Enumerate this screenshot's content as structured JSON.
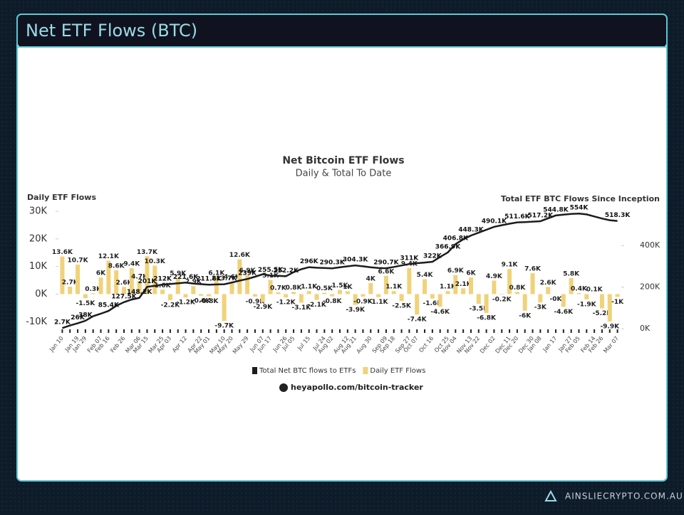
{
  "header": {
    "title": "Net ETF Flows (BTC)"
  },
  "chart_data": {
    "type": "combo",
    "title": "Net Bitcoin ETF Flows",
    "subtitle": "Daily & Total To Date",
    "y_label": "Daily ETF Flows",
    "y2_label": "Total ETF BTC Flows Since Inception",
    "source": "heyapollo.com/bitcoin-tracker",
    "categories": [
      "Jan 10",
      null,
      "Jan 19",
      "Jan 29",
      null,
      "Feb 07",
      "Feb 16",
      null,
      "Feb 26",
      null,
      "Mar 06",
      "Mar 15",
      null,
      "Mar 25",
      "Apr 03",
      null,
      "Apr 12",
      null,
      "Apr 22",
      "May 01",
      null,
      "May 10",
      "May 20",
      null,
      "May 29",
      null,
      "Jun 07",
      "Jun 17",
      null,
      "Jun 26",
      "Jul 05",
      null,
      "Jul 15",
      null,
      "Jul 24",
      "Aug 02",
      null,
      "Aug 12",
      "Aug 21",
      null,
      "Aug 30",
      null,
      "Sep 09",
      "Sep 18",
      null,
      "Sep 27",
      "Oct 07",
      null,
      "Oct 16",
      null,
      "Oct 25",
      "Nov 04",
      null,
      "Nov 13",
      "Nov 22",
      null,
      "Dec 02",
      null,
      "Dec 11",
      "Dec 20",
      null,
      "Dec 30",
      "Jan 08",
      null,
      "Jan 17",
      null,
      "Jan 27",
      "Feb 05",
      null,
      "Feb 14",
      "Feb 26",
      null,
      "Mar 07"
    ],
    "series": [
      {
        "name": "Total Net BTC flows to ETFs",
        "type": "line",
        "axis": "y2",
        "color": "#1c1c1c",
        "values": [
          2700,
          15000,
          26000,
          38000,
          60000,
          72000,
          85400,
          110000,
          127500,
          140000,
          148200,
          201000,
          206000,
          212000,
          215000,
          218000,
          221600,
          217000,
          214000,
          211600,
          212500,
          213700,
          222000,
          231000,
          239000,
          250000,
          262000,
          255500,
          254000,
          252200,
          272000,
          286000,
          296000,
          293000,
          292000,
          290300,
          295000,
          300000,
          304300,
          300000,
          295000,
          292000,
          290700,
          297000,
          304000,
          311000,
          315000,
          318000,
          322000,
          345000,
          366900,
          406800,
          430000,
          448300,
          462000,
          476000,
          490100,
          498000,
          505000,
          511600,
          513000,
          515000,
          517200,
          531000,
          544800,
          549000,
          552000,
          554000,
          550000,
          540000,
          530000,
          522000,
          518300
        ],
        "value_labels": [
          "2.7K",
          null,
          "26K",
          "38K",
          null,
          null,
          "85.4K",
          null,
          "127.5K",
          null,
          "148.2K",
          "201K",
          null,
          "212K",
          null,
          null,
          "221.6K",
          null,
          null,
          "211.6K",
          null,
          "213.7K",
          null,
          null,
          "239K",
          null,
          null,
          "255.5K",
          null,
          "252.2K",
          null,
          null,
          "296K",
          null,
          null,
          "290.3K",
          null,
          null,
          "304.3K",
          null,
          null,
          null,
          "290.7K",
          null,
          null,
          "311K",
          null,
          null,
          "322K",
          null,
          "366.9K",
          "406.8K",
          null,
          "448.3K",
          null,
          null,
          "490.1K",
          null,
          null,
          "511.6K",
          null,
          null,
          "517.2K",
          null,
          "544.8K",
          null,
          null,
          "554K",
          null,
          null,
          null,
          null,
          "518.3K"
        ]
      },
      {
        "name": "Daily ETF Flows",
        "type": "bar",
        "color": "#f0d27a",
        "values": [
          13600,
          2700,
          10700,
          -1500,
          300,
          6000,
          12100,
          8600,
          2600,
          9400,
          4700,
          13700,
          10300,
          1600,
          -2200,
          5900,
          -1200,
          2900,
          -600,
          -800,
          6100,
          -9700,
          4600,
          12600,
          6900,
          -900,
          -2900,
          5100,
          700,
          -1200,
          800,
          -3100,
          1100,
          -2100,
          500,
          -800,
          1500,
          1000,
          -3900,
          -900,
          4000,
          -1100,
          6600,
          1100,
          -2500,
          9400,
          -7400,
          5400,
          -1600,
          -4600,
          1100,
          6900,
          2100,
          6000,
          -3500,
          -6800,
          4900,
          -200,
          9100,
          800,
          -6000,
          7600,
          -3000,
          2600,
          -40,
          -4600,
          5800,
          400,
          -1900,
          100,
          -5200,
          -9900,
          -1000
        ],
        "value_labels": [
          "13.6K",
          "2.7K",
          "10.7K",
          "-1.5K",
          "0.3K",
          "6K",
          "12.1K",
          "8.6K",
          "2.6K",
          "9.4K",
          "4.7K",
          "13.7K",
          "10.3K",
          "1.6K",
          "-2.2K",
          "5.9K",
          "-1.2K",
          "2.9K",
          "-0.6K",
          "-0.8K",
          "6.1K",
          "-9.7K",
          "4.6K",
          "12.6K",
          "6.9K",
          "-0.9K",
          "-2.9K",
          "5.1K",
          "0.7K",
          "-1.2K",
          "0.8K",
          "-3.1K",
          "1.1K",
          "-2.1K",
          "0.5K",
          "-0.8K",
          "1.5K",
          "1K",
          "-3.9K",
          "-0.9K",
          "4K",
          "-1.1K",
          "6.6K",
          "1.1K",
          "-2.5K",
          "9.4K",
          "-7.4K",
          "5.4K",
          "-1.6K",
          "-4.6K",
          "1.1K",
          "6.9K",
          "2.1K",
          "6K",
          "-3.5K",
          "-6.8K",
          "4.9K",
          "-0.2K",
          "9.1K",
          "0.8K",
          "-6K",
          "7.6K",
          "-3K",
          "2.6K",
          "-0K",
          "-4.6K",
          "5.8K",
          "0.4K",
          "-1.9K",
          "0.1K",
          "-5.2K",
          "-9.9K",
          "-1K"
        ]
      }
    ],
    "ylim": [
      -12500,
      30000
    ],
    "yticks": [
      {
        "value": -10000,
        "label": "-10K"
      },
      {
        "value": 0,
        "label": "0K"
      },
      {
        "value": 10000,
        "label": "10K"
      },
      {
        "value": 20000,
        "label": "20K"
      },
      {
        "value": 30000,
        "label": "30K"
      }
    ],
    "y2lim": [
      0,
      565000
    ],
    "y2ticks": [
      {
        "value": 0,
        "label": "0K"
      },
      {
        "value": 200000,
        "label": "200K"
      },
      {
        "value": 400000,
        "label": "400K"
      }
    ]
  },
  "footer": {
    "brand": "AINSLIECRYPTO.COM.AU"
  }
}
